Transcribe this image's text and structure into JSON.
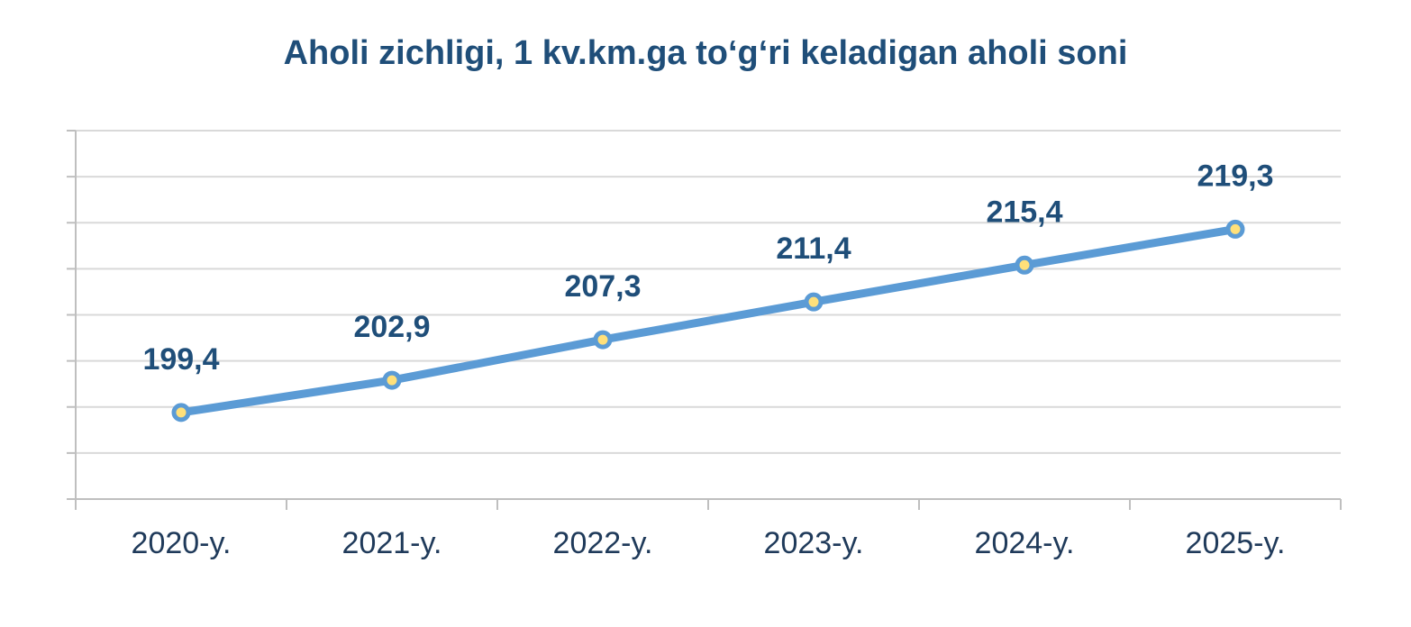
{
  "chart_data": {
    "type": "line",
    "title": "Aholi zichligi, 1 kv.km.ga to‘g‘ri keladigan aholi soni",
    "categories": [
      "2020-y.",
      "2021-y.",
      "2022-y.",
      "2023-y.",
      "2024-y.",
      "2025-y."
    ],
    "series": [
      {
        "values": [
          199.4,
          202.9,
          207.3,
          211.4,
          215.4,
          219.3
        ]
      }
    ],
    "data_labels": [
      "199,4",
      "202,9",
      "207,3",
      "211,4",
      "215,4",
      "219,3"
    ],
    "xlabel": "",
    "ylabel": "",
    "ylim": [
      190,
      230
    ],
    "y_tick_labels_shown": false,
    "grid": true,
    "legend": "none",
    "colors": {
      "line": "#5b9bd5",
      "marker_fill": "#ffe07a",
      "label": "#1f4e79",
      "grid": "#d9d9d9",
      "title": "#1f4e79"
    }
  }
}
